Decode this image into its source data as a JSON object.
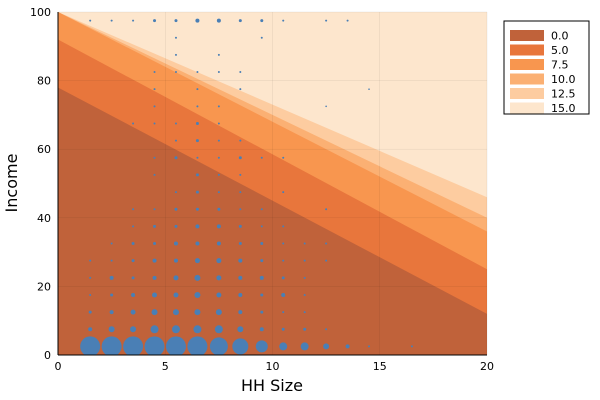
{
  "chart_data": {
    "type": "contourf+scatter",
    "xlabel": "HH Size",
    "ylabel": "Income",
    "xlim": [
      0,
      20
    ],
    "ylim": [
      0,
      100
    ],
    "x_ticks": [
      0,
      5,
      10,
      15,
      20
    ],
    "y_ticks": [
      0,
      20,
      40,
      60,
      80,
      100
    ],
    "grid": true,
    "legend_position": "top-right",
    "contour_levels": [
      {
        "label": "0.0",
        "color": "#c0623a"
      },
      {
        "label": "5.0",
        "color": "#e8763c"
      },
      {
        "label": "7.5",
        "color": "#f8964f"
      },
      {
        "label": "10.0",
        "color": "#fbb073"
      },
      {
        "label": "12.5",
        "color": "#fdcca0"
      },
      {
        "label": "15.0",
        "color": "#fde6cd"
      }
    ],
    "contour_boundaries": [
      {
        "y_at_x0": 78,
        "y_at_x20": 12
      },
      {
        "y_at_x0": 92,
        "y_at_x20": 25
      },
      {
        "y_at_x0": 100,
        "y_at_x20": 36
      },
      {
        "y_at_x0": 100,
        "y_at_x20": 40
      },
      {
        "y_at_x0": 100,
        "y_at_x20": 46
      }
    ],
    "point_color": "#4a7fb5",
    "points": [
      {
        "x": 1.5,
        "y": 2.5,
        "size": 10
      },
      {
        "x": 2.5,
        "y": 2.5,
        "size": 10
      },
      {
        "x": 3.5,
        "y": 2.5,
        "size": 10
      },
      {
        "x": 4.5,
        "y": 2.5,
        "size": 10
      },
      {
        "x": 5.5,
        "y": 2.5,
        "size": 10
      },
      {
        "x": 6.5,
        "y": 2.5,
        "size": 10
      },
      {
        "x": 7.5,
        "y": 2.5,
        "size": 9
      },
      {
        "x": 8.5,
        "y": 2.5,
        "size": 8
      },
      {
        "x": 9.5,
        "y": 2.5,
        "size": 6
      },
      {
        "x": 10.5,
        "y": 2.5,
        "size": 4
      },
      {
        "x": 11.5,
        "y": 2.5,
        "size": 4
      },
      {
        "x": 12.5,
        "y": 2.5,
        "size": 3
      },
      {
        "x": 13.5,
        "y": 2.5,
        "size": 2
      },
      {
        "x": 14.5,
        "y": 2.5,
        "size": 1
      },
      {
        "x": 16.5,
        "y": 2.5,
        "size": 1
      },
      {
        "x": 1.5,
        "y": 7.5,
        "size": 2
      },
      {
        "x": 2.5,
        "y": 7.5,
        "size": 3
      },
      {
        "x": 3.5,
        "y": 7.5,
        "size": 3
      },
      {
        "x": 4.5,
        "y": 7.5,
        "size": 4
      },
      {
        "x": 5.5,
        "y": 7.5,
        "size": 4
      },
      {
        "x": 6.5,
        "y": 7.5,
        "size": 4
      },
      {
        "x": 7.5,
        "y": 7.5,
        "size": 4
      },
      {
        "x": 8.5,
        "y": 7.5,
        "size": 3
      },
      {
        "x": 9.5,
        "y": 7.5,
        "size": 2
      },
      {
        "x": 10.5,
        "y": 7.5,
        "size": 1.5
      },
      {
        "x": 11.5,
        "y": 7.5,
        "size": 1.5
      },
      {
        "x": 12.5,
        "y": 7.5,
        "size": 1
      },
      {
        "x": 1.5,
        "y": 12.5,
        "size": 1.5
      },
      {
        "x": 2.5,
        "y": 12.5,
        "size": 2
      },
      {
        "x": 3.5,
        "y": 12.5,
        "size": 2.5
      },
      {
        "x": 4.5,
        "y": 12.5,
        "size": 3
      },
      {
        "x": 5.5,
        "y": 12.5,
        "size": 3
      },
      {
        "x": 6.5,
        "y": 12.5,
        "size": 3
      },
      {
        "x": 7.5,
        "y": 12.5,
        "size": 3
      },
      {
        "x": 8.5,
        "y": 12.5,
        "size": 2
      },
      {
        "x": 9.5,
        "y": 12.5,
        "size": 1.5
      },
      {
        "x": 10.5,
        "y": 12.5,
        "size": 1
      },
      {
        "x": 11.5,
        "y": 12.5,
        "size": 1
      },
      {
        "x": 1.5,
        "y": 17.5,
        "size": 1
      },
      {
        "x": 2.5,
        "y": 17.5,
        "size": 1.5
      },
      {
        "x": 3.5,
        "y": 17.5,
        "size": 2
      },
      {
        "x": 4.5,
        "y": 17.5,
        "size": 2.5
      },
      {
        "x": 5.5,
        "y": 17.5,
        "size": 2.5
      },
      {
        "x": 6.5,
        "y": 17.5,
        "size": 3
      },
      {
        "x": 7.5,
        "y": 17.5,
        "size": 2.5
      },
      {
        "x": 8.5,
        "y": 17.5,
        "size": 2
      },
      {
        "x": 9.5,
        "y": 17.5,
        "size": 1.5
      },
      {
        "x": 10.5,
        "y": 17.5,
        "size": 2
      },
      {
        "x": 11.5,
        "y": 17.5,
        "size": 1
      },
      {
        "x": 1.5,
        "y": 22.5,
        "size": 1
      },
      {
        "x": 2.5,
        "y": 22.5,
        "size": 2
      },
      {
        "x": 3.5,
        "y": 22.5,
        "size": 1.5
      },
      {
        "x": 4.5,
        "y": 22.5,
        "size": 2
      },
      {
        "x": 5.5,
        "y": 22.5,
        "size": 2.5
      },
      {
        "x": 6.5,
        "y": 22.5,
        "size": 3
      },
      {
        "x": 7.5,
        "y": 22.5,
        "size": 2.5
      },
      {
        "x": 8.5,
        "y": 22.5,
        "size": 2
      },
      {
        "x": 9.5,
        "y": 22.5,
        "size": 2
      },
      {
        "x": 10.5,
        "y": 22.5,
        "size": 1.5
      },
      {
        "x": 11.5,
        "y": 22.5,
        "size": 1
      },
      {
        "x": 1.5,
        "y": 27.5,
        "size": 1
      },
      {
        "x": 2.5,
        "y": 27.5,
        "size": 1
      },
      {
        "x": 3.5,
        "y": 27.5,
        "size": 1.5
      },
      {
        "x": 4.5,
        "y": 27.5,
        "size": 2
      },
      {
        "x": 5.5,
        "y": 27.5,
        "size": 2
      },
      {
        "x": 6.5,
        "y": 27.5,
        "size": 2.5
      },
      {
        "x": 7.5,
        "y": 27.5,
        "size": 2.5
      },
      {
        "x": 8.5,
        "y": 27.5,
        "size": 2
      },
      {
        "x": 9.5,
        "y": 27.5,
        "size": 1.5
      },
      {
        "x": 10.5,
        "y": 27.5,
        "size": 1
      },
      {
        "x": 11.5,
        "y": 27.5,
        "size": 1
      },
      {
        "x": 12.5,
        "y": 27.5,
        "size": 1
      },
      {
        "x": 2.5,
        "y": 32.5,
        "size": 1
      },
      {
        "x": 3.5,
        "y": 32.5,
        "size": 1.5
      },
      {
        "x": 4.5,
        "y": 32.5,
        "size": 1.5
      },
      {
        "x": 5.5,
        "y": 32.5,
        "size": 2
      },
      {
        "x": 6.5,
        "y": 32.5,
        "size": 2
      },
      {
        "x": 7.5,
        "y": 32.5,
        "size": 2
      },
      {
        "x": 8.5,
        "y": 32.5,
        "size": 1.5
      },
      {
        "x": 9.5,
        "y": 32.5,
        "size": 1.5
      },
      {
        "x": 10.5,
        "y": 32.5,
        "size": 1
      },
      {
        "x": 11.5,
        "y": 32.5,
        "size": 1
      },
      {
        "x": 12.5,
        "y": 32.5,
        "size": 1
      },
      {
        "x": 3.5,
        "y": 37.5,
        "size": 1
      },
      {
        "x": 4.5,
        "y": 37.5,
        "size": 1.5
      },
      {
        "x": 5.5,
        "y": 37.5,
        "size": 1.5
      },
      {
        "x": 6.5,
        "y": 37.5,
        "size": 2
      },
      {
        "x": 7.5,
        "y": 37.5,
        "size": 2
      },
      {
        "x": 8.5,
        "y": 37.5,
        "size": 1.5
      },
      {
        "x": 9.5,
        "y": 37.5,
        "size": 1
      },
      {
        "x": 10.5,
        "y": 37.5,
        "size": 1
      },
      {
        "x": 3.5,
        "y": 42.5,
        "size": 1
      },
      {
        "x": 4.5,
        "y": 42.5,
        "size": 1
      },
      {
        "x": 5.5,
        "y": 42.5,
        "size": 1.5
      },
      {
        "x": 6.5,
        "y": 42.5,
        "size": 1.5
      },
      {
        "x": 7.5,
        "y": 42.5,
        "size": 1.5
      },
      {
        "x": 8.5,
        "y": 42.5,
        "size": 1
      },
      {
        "x": 9.5,
        "y": 42.5,
        "size": 1
      },
      {
        "x": 12.5,
        "y": 42.5,
        "size": 1
      },
      {
        "x": 5.5,
        "y": 47.5,
        "size": 1
      },
      {
        "x": 6.5,
        "y": 47.5,
        "size": 1.5
      },
      {
        "x": 7.5,
        "y": 47.5,
        "size": 1
      },
      {
        "x": 8.5,
        "y": 47.5,
        "size": 1
      },
      {
        "x": 10.5,
        "y": 47.5,
        "size": 1
      },
      {
        "x": 4.5,
        "y": 52.5,
        "size": 1
      },
      {
        "x": 6.5,
        "y": 52.5,
        "size": 1.5
      },
      {
        "x": 7.5,
        "y": 52.5,
        "size": 1
      },
      {
        "x": 8.5,
        "y": 52.5,
        "size": 1
      },
      {
        "x": 4.5,
        "y": 57.5,
        "size": 1
      },
      {
        "x": 5.5,
        "y": 57.5,
        "size": 1.5
      },
      {
        "x": 6.5,
        "y": 57.5,
        "size": 1
      },
      {
        "x": 7.5,
        "y": 57.5,
        "size": 1
      },
      {
        "x": 8.5,
        "y": 57.5,
        "size": 1.5
      },
      {
        "x": 9.5,
        "y": 57.5,
        "size": 1
      },
      {
        "x": 10.5,
        "y": 57.5,
        "size": 1
      },
      {
        "x": 5.5,
        "y": 62.5,
        "size": 1
      },
      {
        "x": 6.5,
        "y": 62.5,
        "size": 1.5
      },
      {
        "x": 7.5,
        "y": 62.5,
        "size": 1
      },
      {
        "x": 8.5,
        "y": 62.5,
        "size": 1
      },
      {
        "x": 3.5,
        "y": 67.5,
        "size": 1
      },
      {
        "x": 4.5,
        "y": 67.5,
        "size": 1
      },
      {
        "x": 5.5,
        "y": 67.5,
        "size": 1
      },
      {
        "x": 6.5,
        "y": 67.5,
        "size": 1.5
      },
      {
        "x": 7.5,
        "y": 67.5,
        "size": 1
      },
      {
        "x": 4.5,
        "y": 72.5,
        "size": 1
      },
      {
        "x": 6.5,
        "y": 72.5,
        "size": 1
      },
      {
        "x": 7.5,
        "y": 72.5,
        "size": 1
      },
      {
        "x": 12.5,
        "y": 72.5,
        "size": 0.8
      },
      {
        "x": 4.5,
        "y": 77.5,
        "size": 1
      },
      {
        "x": 6.5,
        "y": 77.5,
        "size": 1
      },
      {
        "x": 8.5,
        "y": 77.5,
        "size": 1
      },
      {
        "x": 14.5,
        "y": 77.5,
        "size": 0.8
      },
      {
        "x": 4.5,
        "y": 82.5,
        "size": 1
      },
      {
        "x": 5.5,
        "y": 82.5,
        "size": 1
      },
      {
        "x": 6.5,
        "y": 82.5,
        "size": 1
      },
      {
        "x": 7.5,
        "y": 82.5,
        "size": 1
      },
      {
        "x": 8.5,
        "y": 82.5,
        "size": 1
      },
      {
        "x": 5.5,
        "y": 87.5,
        "size": 1
      },
      {
        "x": 7.5,
        "y": 87.5,
        "size": 1
      },
      {
        "x": 5.5,
        "y": 92.5,
        "size": 1
      },
      {
        "x": 9.5,
        "y": 92.5,
        "size": 1
      },
      {
        "x": 1.5,
        "y": 97.5,
        "size": 1
      },
      {
        "x": 2.5,
        "y": 97.5,
        "size": 1
      },
      {
        "x": 3.5,
        "y": 97.5,
        "size": 1
      },
      {
        "x": 4.5,
        "y": 97.5,
        "size": 1.5
      },
      {
        "x": 5.5,
        "y": 97.5,
        "size": 1.5
      },
      {
        "x": 6.5,
        "y": 97.5,
        "size": 2
      },
      {
        "x": 7.5,
        "y": 97.5,
        "size": 2
      },
      {
        "x": 8.5,
        "y": 97.5,
        "size": 1.5
      },
      {
        "x": 9.5,
        "y": 97.5,
        "size": 1.5
      },
      {
        "x": 10.5,
        "y": 97.5,
        "size": 1
      },
      {
        "x": 12.5,
        "y": 97.5,
        "size": 1
      },
      {
        "x": 13.5,
        "y": 97.5,
        "size": 1
      }
    ]
  }
}
